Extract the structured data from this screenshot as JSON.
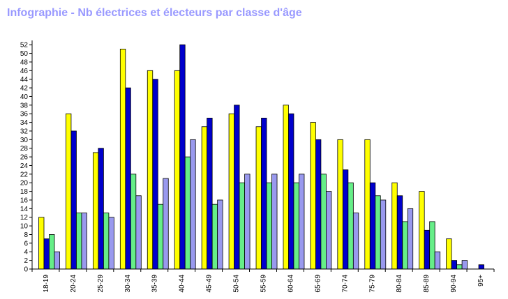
{
  "chart_data": {
    "type": "bar",
    "title": "Infographie - Nb électrices et électeurs par classe d'âge",
    "xlabel": "",
    "ylabel": "",
    "ylim": [
      0,
      53
    ],
    "y_ticks": [
      0,
      2,
      4,
      6,
      8,
      10,
      12,
      14,
      16,
      18,
      20,
      22,
      24,
      26,
      28,
      30,
      32,
      34,
      36,
      38,
      40,
      42,
      44,
      46,
      48,
      50,
      52
    ],
    "grid": false,
    "legend": "none",
    "categories": [
      "18-19",
      "20-24",
      "25-29",
      "30-34",
      "35-39",
      "40-44",
      "45-49",
      "50-54",
      "55-59",
      "60-64",
      "65-69",
      "70-74",
      "75-79",
      "80-84",
      "85-89",
      "90-94",
      "95+"
    ],
    "series": [
      {
        "color": "#ffff00",
        "values": [
          12,
          36,
          27,
          51,
          46,
          46,
          33,
          36,
          33,
          38,
          34,
          30,
          30,
          20,
          18,
          7,
          0
        ]
      },
      {
        "color": "#0000cc",
        "values": [
          7,
          32,
          28,
          42,
          44,
          52,
          35,
          38,
          35,
          36,
          30,
          23,
          20,
          17,
          9,
          2,
          1
        ]
      },
      {
        "color": "#66ee88",
        "values": [
          8,
          13,
          13,
          22,
          15,
          26,
          15,
          20,
          20,
          20,
          22,
          20,
          17,
          11,
          11,
          1,
          0
        ]
      },
      {
        "color": "#9999ee",
        "values": [
          4,
          13,
          12,
          17,
          21,
          30,
          16,
          22,
          22,
          22,
          18,
          13,
          16,
          14,
          4,
          2,
          0
        ]
      }
    ]
  }
}
